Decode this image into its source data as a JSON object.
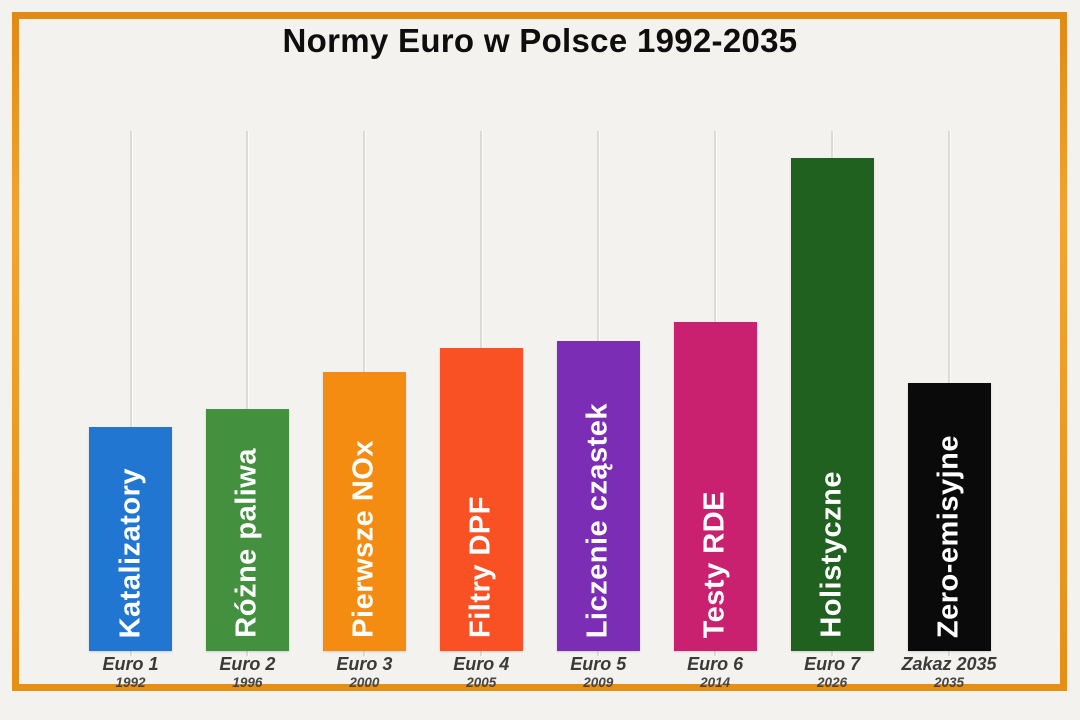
{
  "title": "Normy Euro w Polsce 1992-2035",
  "colors": {
    "background": "#f3f2ee",
    "frame_border": "#ea941e",
    "gridline": "#dbdad5",
    "title_text": "#0e0e0e",
    "category_text": "#3a3a3a",
    "year_text": "#454545",
    "bar_label_text": "#ffffff"
  },
  "chart_data": {
    "type": "bar",
    "title": "Normy Euro w Polsce 1992-2035",
    "orientation": "vertical",
    "legend": "none",
    "y_axis": "hidden (bar heights are relative, no scale shown)",
    "gridlines": "one faint vertical guide line per bar, behind bars",
    "xlabel": "",
    "ylabel": "",
    "ylim": [
      0,
      100
    ],
    "categories": [
      "Euro 1",
      "Euro 2",
      "Euro 3",
      "Euro 4",
      "Euro 5",
      "Euro 6",
      "Euro 7",
      "Zakaz 2035"
    ],
    "bars": [
      {
        "category": "Euro 1",
        "year": "1992",
        "label": "Katalizatory",
        "value_relative": 45.4,
        "color": "#2176d2"
      },
      {
        "category": "Euro 2",
        "year": "1996",
        "label": "Różne paliwa",
        "value_relative": 49.1,
        "color": "#43903f"
      },
      {
        "category": "Euro 3",
        "year": "2000",
        "label": "Pierwsze NOx",
        "value_relative": 56.6,
        "color": "#f38c10"
      },
      {
        "category": "Euro 4",
        "year": "2005",
        "label": "Filtry DPF",
        "value_relative": 61.5,
        "color": "#f95124"
      },
      {
        "category": "Euro 5",
        "year": "2009",
        "label": "Liczenie cząstek",
        "value_relative": 62.9,
        "color": "#7c2db6"
      },
      {
        "category": "Euro 6",
        "year": "2014",
        "label": "Testy RDE",
        "value_relative": 66.7,
        "color": "#c92070"
      },
      {
        "category": "Euro 7",
        "year": "2026",
        "label": "Holistyczne",
        "value_relative": 100,
        "color": "#20611f"
      },
      {
        "category": "Zakaz 2035",
        "year": "2035",
        "label": "Zero-emisyjne",
        "value_relative": 54.4,
        "color": "#0a0a0a"
      }
    ]
  }
}
